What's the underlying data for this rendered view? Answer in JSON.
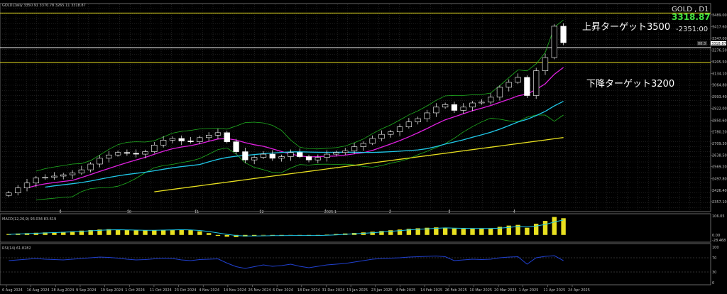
{
  "window": {
    "header": "GOLD,Daily  3350.91 3370.78 3265.11 3318.87",
    "symbol_label": "GOLD , D1",
    "last_price": "3318.87",
    "countdown": "-2351:00",
    "price_tag": "3318.87",
    "spread_tag": "88.3"
  },
  "annotations": {
    "upper_target": "上昇ターゲット3500",
    "lower_target": "下降ターゲット3200"
  },
  "indicators": {
    "macd_label": "MACD(12,26,9) 93.034 83.619",
    "rsi_label": "RSI(14) 61.8282"
  },
  "colors": {
    "background": "#000000",
    "bull": "#ffffff",
    "bear": "#ffffff",
    "ma_short": "#e020e0",
    "ma_mid": "#20c8e8",
    "ma_long": "#e8e020",
    "bollinger": "#20b020",
    "level": "#e8e020",
    "macd_hist": "#e8e020",
    "macd_signal": "#20c8e8",
    "rsi_line": "#2040d0",
    "text": "#c0c0c0",
    "last_price_text": "#40e040"
  },
  "chart_data": {
    "type": "candlestick",
    "price_axis_ticks": [
      "3489.00",
      "3417.60",
      "3347.00",
      "3276.50",
      "3205.50",
      "3134.10",
      "3064.80",
      "2993.40",
      "2922.00",
      "2850.60",
      "2780.20",
      "2709.30",
      "2638.50",
      "2569.20",
      "2497.80",
      "2426.40",
      "2357.10"
    ],
    "price_range": [
      2357,
      3510
    ],
    "time_labels": [
      "6 Aug 2024",
      "16 Aug 2024",
      "28 Aug 2024",
      "9 Sep 2024",
      "19 Sep 2024",
      "1 Oct 2024",
      "11 Oct 2024",
      "23 Oct 2024",
      "4 Nov 2024",
      "14 Nov 2024",
      "26 Nov 2024",
      "6 Dec 2024",
      "18 Dec 2024",
      "31 Dec 2024",
      "13 Jan 2025",
      "23 Jan 2025",
      "4 Feb 2025",
      "14 Feb 2025",
      "26 Feb 2025",
      "10 Mar 2025",
      "20 Mar 2025",
      "1 Apr 2025",
      "11 Apr 2025",
      "24 Apr 2025"
    ],
    "month_labels": [
      "9",
      "10",
      "11",
      "12",
      "2025.1",
      "2",
      "3",
      "4"
    ],
    "horizontal_levels": [
      3500,
      3290,
      3200
    ],
    "close_path": [
      2410,
      2440,
      2470,
      2500,
      2505,
      2512,
      2520,
      2530,
      2550,
      2585,
      2620,
      2640,
      2655,
      2650,
      2645,
      2660,
      2700,
      2730,
      2740,
      2725,
      2720,
      2745,
      2760,
      2775,
      2720,
      2660,
      2610,
      2625,
      2645,
      2620,
      2630,
      2655,
      2630,
      2610,
      2625,
      2645,
      2655,
      2665,
      2690,
      2710,
      2740,
      2765,
      2780,
      2810,
      2840,
      2860,
      2895,
      2930,
      2945,
      2910,
      2930,
      2955,
      2960,
      2990,
      3050,
      3080,
      3110,
      3000,
      3150,
      3230,
      3420,
      3320
    ],
    "macd_range": [
      -28.468,
      106.05
    ],
    "macd_axis_ticks": [
      "106.05",
      "0.00",
      "-28.468"
    ],
    "macd_hist": [
      5,
      8,
      10,
      12,
      14,
      15,
      17,
      20,
      24,
      27,
      30,
      32,
      30,
      28,
      25,
      26,
      27,
      28,
      29,
      30,
      27,
      20,
      10,
      -5,
      -10,
      -12,
      -9,
      -5,
      -2,
      -4,
      -3,
      -1,
      -2,
      -4,
      -3,
      2,
      5,
      8,
      11,
      14,
      18,
      22,
      26,
      30,
      34,
      37,
      40,
      42,
      41,
      36,
      34,
      36,
      35,
      37,
      45,
      52,
      56,
      40,
      62,
      78,
      100,
      93
    ],
    "macd_signal": [
      3,
      5,
      7,
      9,
      11,
      13,
      15,
      17,
      20,
      23,
      26,
      28,
      29,
      28,
      27,
      26,
      26,
      27,
      28,
      29,
      28,
      25,
      19,
      11,
      3,
      -3,
      -6,
      -6,
      -5,
      -4,
      -4,
      -3,
      -3,
      -3,
      -3,
      -2,
      0,
      3,
      6,
      9,
      12,
      16,
      20,
      24,
      28,
      31,
      34,
      37,
      39,
      38,
      37,
      36,
      36,
      36,
      38,
      42,
      47,
      45,
      50,
      58,
      72,
      83
    ],
    "rsi_range": [
      0,
      100
    ],
    "rsi_axis_ticks": [
      "100",
      "70",
      "30",
      "0"
    ],
    "rsi_levels": [
      70,
      30
    ],
    "rsi": [
      62,
      64,
      66,
      68,
      66,
      65,
      64,
      66,
      68,
      70,
      72,
      71,
      69,
      66,
      64,
      65,
      67,
      69,
      68,
      64,
      62,
      65,
      66,
      67,
      55,
      45,
      40,
      45,
      50,
      46,
      48,
      52,
      46,
      42,
      46,
      50,
      52,
      54,
      58,
      62,
      66,
      68,
      69,
      70,
      72,
      73,
      74,
      75,
      73,
      62,
      64,
      66,
      65,
      66,
      70,
      72,
      73,
      52,
      70,
      74,
      76,
      62
    ]
  }
}
